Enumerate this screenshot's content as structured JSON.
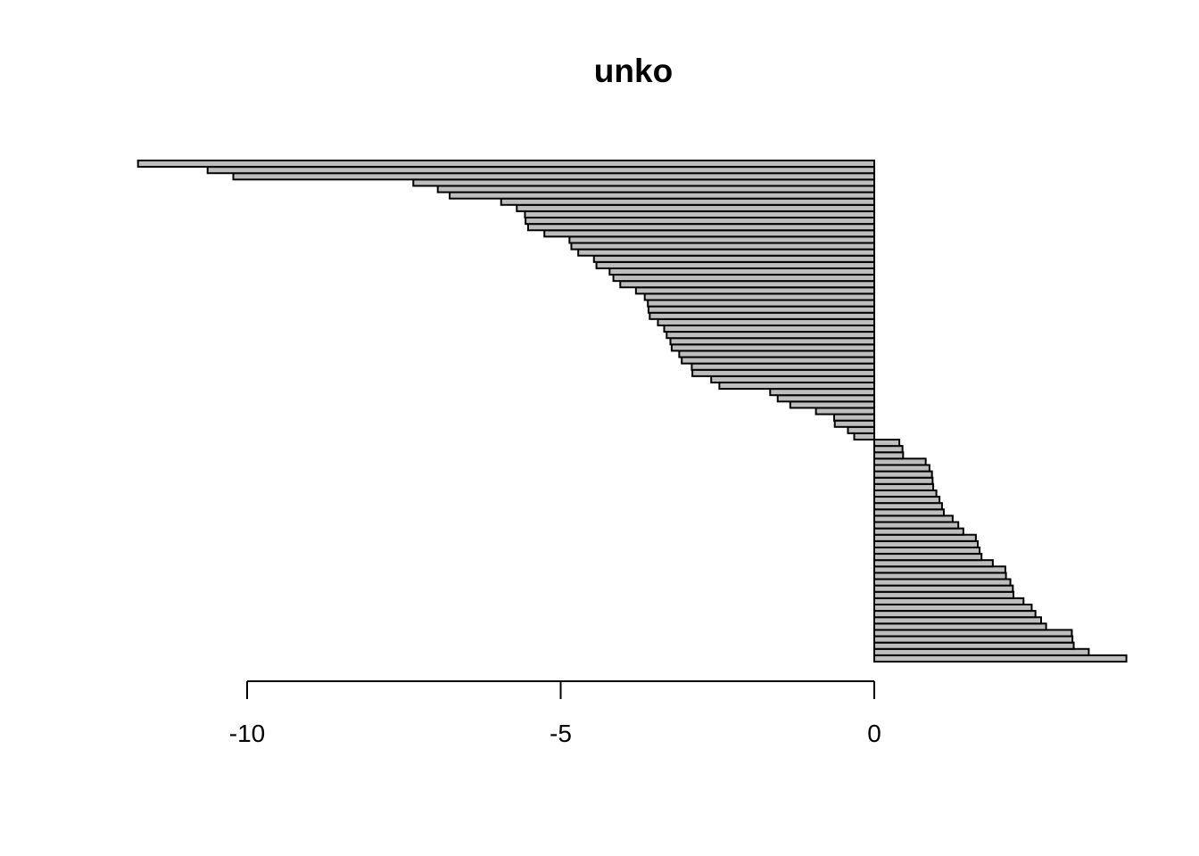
{
  "chart_data": {
    "type": "bar",
    "orientation": "horizontal",
    "title": "unko",
    "xlabel": "",
    "ylabel": "",
    "xlim": [
      -11.8,
      4.1
    ],
    "x_ticks": [
      -10,
      -5,
      0
    ],
    "x_tick_labels": [
      "-10",
      "-5",
      "0"
    ],
    "grid": false,
    "legend": "none",
    "bar_fill_color": "#bebebe",
    "bar_border_color": "#000000",
    "values": [
      4.02,
      3.42,
      3.18,
      3.16,
      3.15,
      2.74,
      2.66,
      2.57,
      2.51,
      2.38,
      2.22,
      2.21,
      2.17,
      2.1,
      2.09,
      1.89,
      1.71,
      1.68,
      1.65,
      1.62,
      1.42,
      1.34,
      1.25,
      1.11,
      1.08,
      1.04,
      0.99,
      0.94,
      0.93,
      0.92,
      0.88,
      0.82,
      0.46,
      0.45,
      0.4,
      -0.32,
      -0.42,
      -0.63,
      -0.64,
      -0.93,
      -1.34,
      -1.54,
      -1.66,
      -2.47,
      -2.6,
      -2.9,
      -2.91,
      -3.07,
      -3.11,
      -3.23,
      -3.25,
      -3.31,
      -3.35,
      -3.45,
      -3.58,
      -3.6,
      -3.61,
      -3.66,
      -3.8,
      -4.05,
      -4.16,
      -4.22,
      -4.43,
      -4.47,
      -4.72,
      -4.83,
      -4.86,
      -5.26,
      -5.52,
      -5.56,
      -5.57,
      -5.7,
      -5.95,
      -6.77,
      -6.96,
      -7.35,
      -10.22,
      -10.63,
      -11.74
    ]
  }
}
